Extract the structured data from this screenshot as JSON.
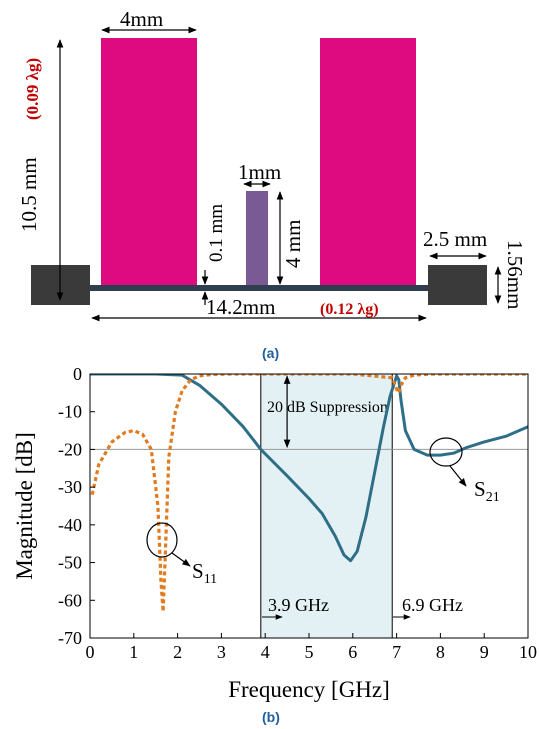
{
  "figure": {
    "colors": {
      "stub": "#DD0A80",
      "center_stub": "#7A5A94",
      "port": "#3A3A3A",
      "line": "#2F3D4F",
      "red_text": "#C00000",
      "caption": "#1F5F9E",
      "s21": "#2E6E86",
      "s11": "#E07B20",
      "band_fill": "#E3F1F5"
    },
    "part_a": {
      "caption": "(a)",
      "dim_stub_width": "4mm",
      "dim_height": "10.5 mm",
      "dim_height_wl": "(0.09 λg)",
      "dim_center_width": "1mm",
      "dim_center_height": "4 mm",
      "dim_gap": "0.1 mm",
      "dim_port_length": "2.5 mm",
      "dim_port_thickness": "1.56mm",
      "dim_total_length": "14.2mm",
      "dim_total_length_wl": "(0.12 λg)"
    },
    "part_b": {
      "caption": "(b)",
      "annotation_suppression": "20 dB Suppression",
      "label_s11": "S",
      "label_s11_sub": "11",
      "label_s21": "S",
      "label_s21_sub": "21",
      "band_low": "3.9 GHz",
      "band_high": "6.9 GHz"
    }
  },
  "chart_data": {
    "type": "line",
    "xlabel": "Frequency [GHz]",
    "ylabel": "Magnitude [dB]",
    "xlim": [
      0,
      10
    ],
    "ylim": [
      -70,
      0
    ],
    "xticks": [
      0,
      1,
      2,
      3,
      4,
      5,
      6,
      7,
      8,
      9,
      10
    ],
    "yticks": [
      0,
      -10,
      -20,
      -30,
      -40,
      -50,
      -60,
      -70
    ],
    "ytick_labels": [
      "0",
      "-10",
      "-20",
      "-30",
      "-40",
      "-50",
      "-60",
      "-70"
    ],
    "reference_line_db": -20,
    "stopband": [
      3.9,
      6.9
    ],
    "series": [
      {
        "name": "S21",
        "style": "solid",
        "x": [
          0,
          1.5,
          2.1,
          2.5,
          3,
          3.5,
          3.9,
          4.5,
          5,
          5.3,
          5.6,
          5.8,
          5.95,
          6.1,
          6.3,
          6.5,
          6.7,
          6.85,
          7.0,
          7.05,
          7.1,
          7.2,
          7.4,
          7.7,
          8.0,
          8.3,
          8.6,
          9,
          9.5,
          10
        ],
        "y": [
          0,
          0,
          -0.3,
          -3,
          -8,
          -14,
          -20,
          -27,
          -33,
          -37,
          -43,
          -48,
          -49.5,
          -47,
          -38,
          -26,
          -14,
          -6,
          -0.5,
          -1.5,
          -7,
          -15,
          -20,
          -21.5,
          -21.5,
          -21,
          -19.5,
          -18,
          -16.5,
          -14
        ]
      },
      {
        "name": "S11",
        "style": "dashed",
        "x": [
          0.05,
          0.2,
          0.5,
          0.8,
          1.0,
          1.2,
          1.4,
          1.55,
          1.62,
          1.67,
          1.72,
          1.8,
          1.95,
          2.1,
          2.3,
          2.5,
          2.8,
          3.2,
          4,
          5,
          6,
          6.9,
          7.0,
          7.05,
          7.1,
          7.2,
          7.4,
          7.8,
          8.5,
          10
        ],
        "y": [
          -32,
          -24,
          -18,
          -15.5,
          -15,
          -16,
          -20,
          -35,
          -55,
          -63,
          -48,
          -22,
          -10,
          -4.5,
          -1.5,
          -0.5,
          -0.1,
          0,
          0,
          0,
          0,
          -1,
          -4,
          -5,
          -3,
          -1,
          -0.3,
          0,
          0,
          0
        ]
      }
    ]
  }
}
